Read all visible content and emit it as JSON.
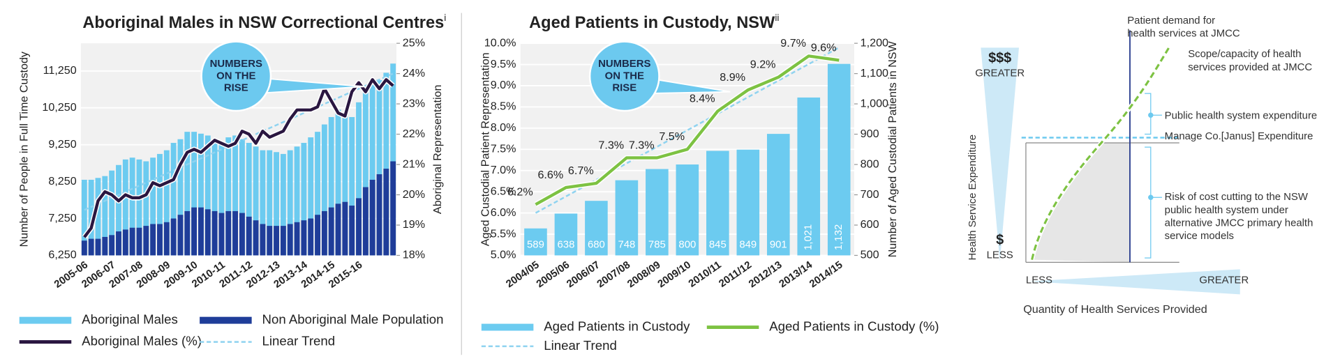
{
  "chart_data": [
    {
      "type": "bar",
      "title": "Aboriginal Males in NSW Correctional Centres",
      "title_note": "i",
      "y_label": "Number of People in Full Time Custody",
      "y2_label": "Aboriginal Representation",
      "annotation": [
        "NUMBERS",
        "ON THE",
        "RISE"
      ],
      "categories": [
        "2005-06",
        null,
        null,
        null,
        "2006-07",
        null,
        null,
        null,
        "2007-08",
        null,
        null,
        null,
        "2008-09",
        null,
        null,
        null,
        "2009-10",
        null,
        null,
        null,
        "2010-11",
        null,
        null,
        null,
        "2011-12",
        null,
        null,
        null,
        "2012-13",
        null,
        null,
        null,
        "2013-14",
        null,
        null,
        null,
        "2014-15",
        null,
        null,
        null,
        "2015-16",
        null,
        null,
        null,
        null,
        null
      ],
      "series": [
        {
          "name": "Aboriginal Males",
          "kind": "bar",
          "axis": "y",
          "color": "#6ccbf0",
          "values": [
            8300,
            8300,
            8350,
            8400,
            8550,
            8700,
            8850,
            8900,
            8850,
            8800,
            8900,
            9000,
            9100,
            9300,
            9400,
            9600,
            9600,
            9550,
            9500,
            9400,
            9300,
            9450,
            9500,
            9400,
            9300,
            9200,
            9100,
            9100,
            9050,
            9000,
            9100,
            9200,
            9300,
            9450,
            9600,
            9800,
            10000,
            10200,
            10100,
            10000,
            10400,
            10700,
            10900,
            11000,
            11200,
            11450
          ]
        },
        {
          "name": "Non Aboriginal Male Population",
          "kind": "bar",
          "axis": "y",
          "color": "#1f3d99",
          "values": [
            6650,
            6700,
            6700,
            6750,
            6800,
            6900,
            6950,
            7000,
            7000,
            7050,
            7100,
            7100,
            7150,
            7250,
            7350,
            7450,
            7550,
            7550,
            7500,
            7450,
            7400,
            7450,
            7450,
            7400,
            7300,
            7200,
            7100,
            7050,
            7050,
            7050,
            7100,
            7150,
            7200,
            7250,
            7350,
            7450,
            7550,
            7650,
            7700,
            7600,
            7800,
            8100,
            8300,
            8450,
            8600,
            8800
          ]
        },
        {
          "name": "Aboriginal Males (%)",
          "kind": "line",
          "axis": "y2",
          "color": "#2a1640",
          "values": [
            18.6,
            18.9,
            19.8,
            20.1,
            20.0,
            19.8,
            20.0,
            19.9,
            19.9,
            20.0,
            20.4,
            20.3,
            20.4,
            20.5,
            21.0,
            21.4,
            21.5,
            21.4,
            21.6,
            21.8,
            21.7,
            21.6,
            21.7,
            22.1,
            22.0,
            21.7,
            22.1,
            21.9,
            22.0,
            22.1,
            22.5,
            22.8,
            22.8,
            22.8,
            22.9,
            23.5,
            23.1,
            22.7,
            22.6,
            23.4,
            23.7,
            23.4,
            23.8,
            23.5,
            23.8,
            23.6
          ]
        }
      ],
      "trend": {
        "name": "Linear Trend",
        "axis": "y2",
        "color": "#8fd3f0",
        "start": 19.5,
        "end": 24.0
      },
      "ylim": [
        6250,
        12000
      ],
      "yticks": [
        {
          "value": 6250,
          "label": "6,250"
        },
        {
          "value": 7250,
          "label": "7,250"
        },
        {
          "value": 8250,
          "label": "8,250"
        },
        {
          "value": 9250,
          "label": "9,250"
        },
        {
          "value": 10250,
          "label": "10,250"
        },
        {
          "value": 11250,
          "label": "11,250"
        }
      ],
      "y2lim": [
        18,
        25
      ],
      "y2ticks": [
        {
          "value": 18,
          "label": "18%"
        },
        {
          "value": 19,
          "label": "19%"
        },
        {
          "value": 20,
          "label": "20%"
        },
        {
          "value": 21,
          "label": "21%"
        },
        {
          "value": 22,
          "label": "22%"
        },
        {
          "value": 23,
          "label": "23%"
        },
        {
          "value": 24,
          "label": "24%"
        },
        {
          "value": 25,
          "label": "25%"
        }
      ],
      "grid": true
    },
    {
      "type": "bar",
      "title": "Aged Patients in Custody, NSW",
      "title_note": "ii",
      "y_label": "Aged Custodial Patient Representation",
      "y2_label": "Number of Aged Custodial Patients in NSW",
      "annotation": [
        "NUMBERS",
        "ON THE",
        "RISE"
      ],
      "categories": [
        "2004/05",
        "2005/06",
        "2006/07",
        "2007/08",
        "2008/09",
        "2009/10",
        "2010/11",
        "2011/12",
        "2012/13",
        "2013/14",
        "2014/15"
      ],
      "series": [
        {
          "name": "Aged Patients in Custody",
          "kind": "bar",
          "axis": "y2",
          "color": "#6ccbf0",
          "values": [
            589,
            638,
            680,
            748,
            785,
            800,
            845,
            849,
            901,
            1021,
            1132
          ],
          "value_labels": [
            "589",
            "638",
            "680",
            "748",
            "785",
            "800",
            "845",
            "849",
            "901",
            "1,021",
            "1,132"
          ]
        },
        {
          "name": "Aged Patients in Custody (%)",
          "kind": "line",
          "axis": "y",
          "color": "#7dc242",
          "values": [
            6.2,
            6.6,
            6.7,
            7.3,
            7.3,
            7.5,
            8.4,
            8.9,
            9.2,
            9.7,
            9.6
          ],
          "value_labels": [
            "6.2%",
            "6.6%",
            "6.7%",
            "7.3%",
            "7.3%",
            "7.5%",
            "8.4%",
            "8.9%",
            "9.2%",
            "9.7%",
            "9.6%"
          ]
        }
      ],
      "trend": {
        "name": "Linear Trend",
        "axis": "y",
        "color": "#8fd3f0",
        "start": 6.0,
        "end": 9.9
      },
      "ylim": [
        5,
        10
      ],
      "yticks": [
        {
          "value": 5,
          "label": "5.0%"
        },
        {
          "value": 5.5,
          "label": "5.5%"
        },
        {
          "value": 6,
          "label": "6.0%"
        },
        {
          "value": 6.5,
          "label": "6.5%"
        },
        {
          "value": 7,
          "label": "7.0%"
        },
        {
          "value": 7.5,
          "label": "7.5%"
        },
        {
          "value": 8,
          "label": "8.0%"
        },
        {
          "value": 8.5,
          "label": "8.5%"
        },
        {
          "value": 9,
          "label": "9.0%"
        },
        {
          "value": 9.5,
          "label": "9.5%"
        },
        {
          "value": 10,
          "label": "10.0%"
        }
      ],
      "y2lim": [
        500,
        1200
      ],
      "y2ticks": [
        500,
        600,
        700,
        800,
        900,
        {
          "value": 1000,
          "label": "1,000"
        },
        {
          "value": 1100,
          "label": "1,100"
        },
        {
          "value": 1200,
          "label": "1,200"
        }
      ],
      "grid": true
    }
  ],
  "diagram": {
    "demand_label": [
      "Patient demand for",
      "health services at JMCC"
    ],
    "scope_label": [
      "Scope/capacity of health",
      "services provided at JMCC"
    ],
    "public_label": "Public health system expenditure",
    "manage_label": "Manage Co.[Janus] Expenditure",
    "risk_label": [
      "Risk of cost cutting to the NSW",
      "public health system under",
      "alternative JMCC primary health",
      "service models"
    ],
    "y_greater_symbol": "$$$",
    "y_greater": "GREATER",
    "y_less_symbol": "$",
    "y_less": "LESS",
    "y_label": "Health Service Expenditure",
    "x_less": "LESS",
    "x_greater": "GREATER",
    "x_label": "Quantity of Health Services Provided"
  }
}
